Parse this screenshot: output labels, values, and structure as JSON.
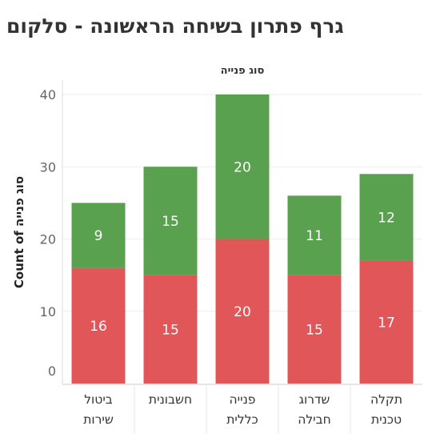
{
  "title": "גרף פתרון בשיחה הראשונה - סלקום",
  "chart_data": {
    "type": "bar",
    "stacked": true,
    "column_header": "סוג פנייה",
    "ylabel": "Count of סוג פנייה",
    "ylim": [
      0,
      42
    ],
    "yticks": [
      0,
      10,
      20,
      30,
      40
    ],
    "grid": true,
    "categories": [
      [
        "ביטול",
        "שירות"
      ],
      [
        "חשבונית"
      ],
      [
        "פנייה",
        "כללית"
      ],
      [
        "שדרוג",
        "חבילה"
      ],
      [
        "תקלה",
        "טכנית"
      ]
    ],
    "series": [
      {
        "color": "#e15759",
        "values": [
          16,
          15,
          20,
          15,
          17
        ]
      },
      {
        "color": "#59a14f",
        "values": [
          9,
          15,
          20,
          11,
          12
        ]
      }
    ]
  }
}
